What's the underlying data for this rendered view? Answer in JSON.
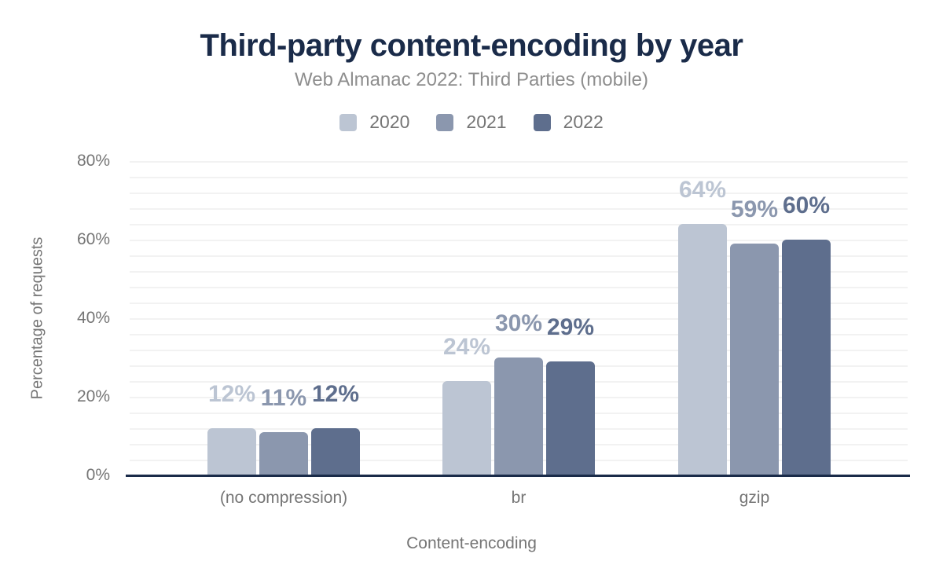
{
  "chart_data": {
    "type": "bar",
    "title": "Third-party content-encoding by year",
    "subtitle": "Web Almanac 2022: Third Parties (mobile)",
    "xlabel": "Content-encoding",
    "ylabel": "Percentage of requests",
    "categories": [
      "(no compression)",
      "br",
      "gzip"
    ],
    "series": [
      {
        "name": "2020",
        "color": "#bcc5d3",
        "values": [
          12,
          24,
          64
        ]
      },
      {
        "name": "2021",
        "color": "#8b97ae",
        "values": [
          11,
          30,
          59
        ]
      },
      {
        "name": "2022",
        "color": "#5e6e8d",
        "values": [
          12,
          29,
          60
        ]
      }
    ],
    "value_label_suffix": "%",
    "y_tick_labels": [
      "80%",
      "60%",
      "40%",
      "20%",
      "0%"
    ],
    "ylim": [
      0,
      80
    ],
    "grid": "horizontal",
    "grid_step_pct": 4,
    "legend_position": "top-center",
    "colors": {
      "title_text": "#1a2b49",
      "subtitle_text": "#8e8e8e",
      "axis_line": "#1a2b49",
      "tick_text": "#757575",
      "gridline": "#f2f2f2",
      "background": "#ffffff"
    }
  }
}
